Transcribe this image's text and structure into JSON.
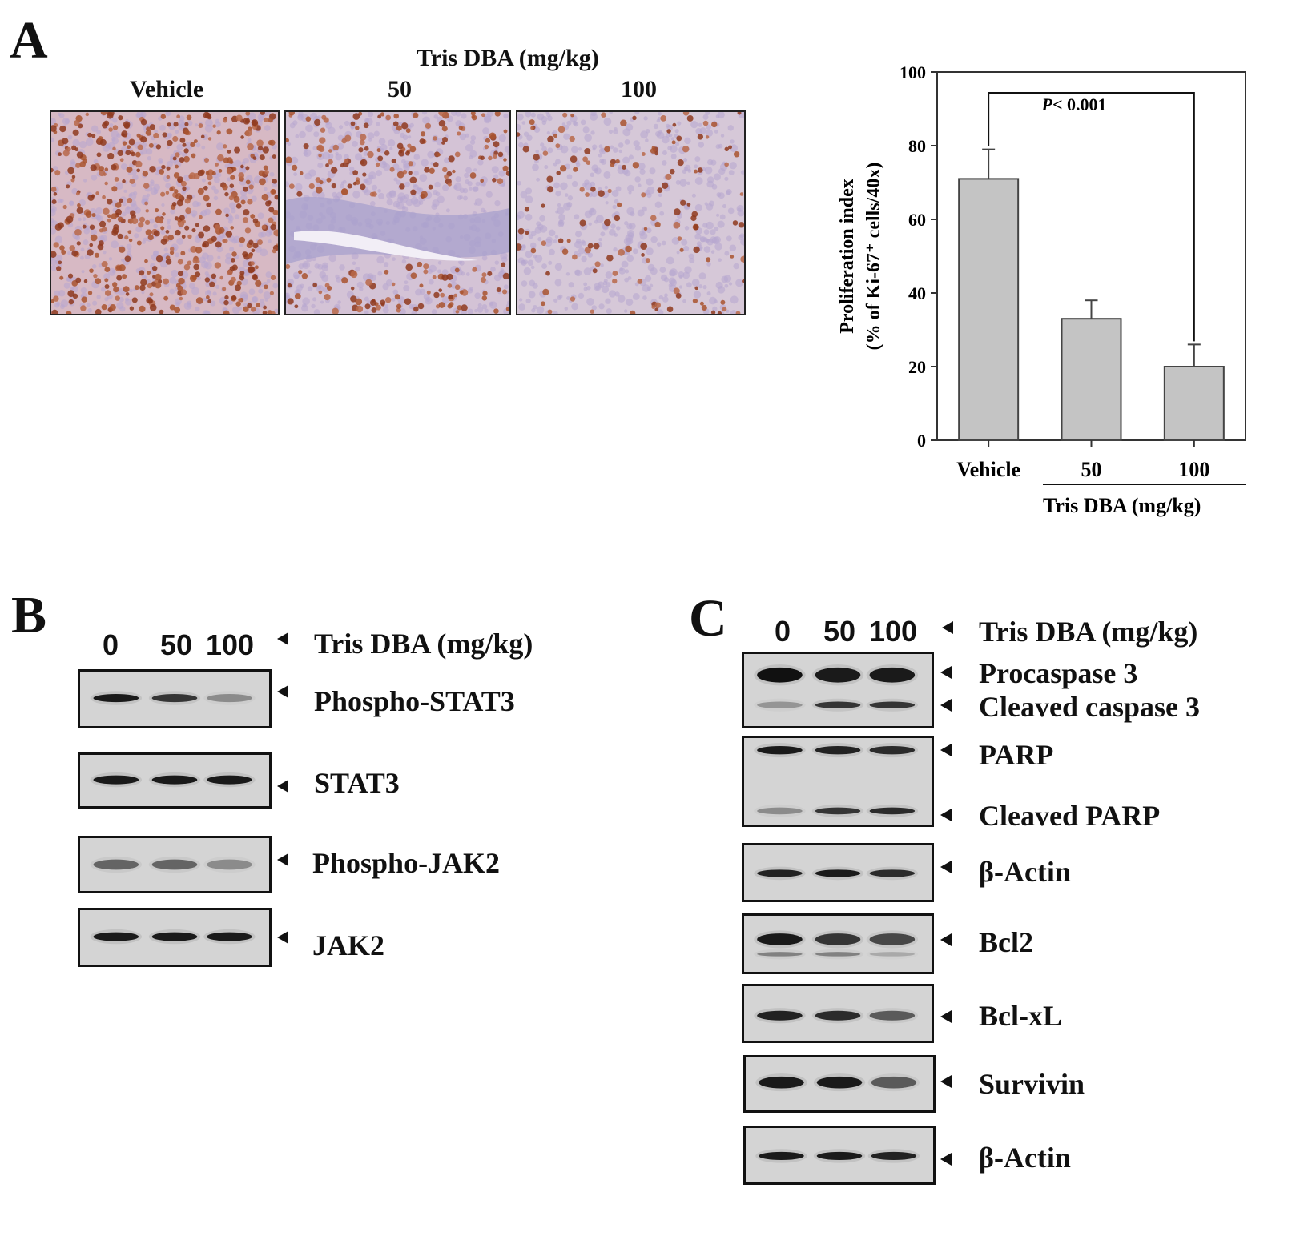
{
  "panels": {
    "a": "A",
    "b": "B",
    "c": "C"
  },
  "panel_a": {
    "header": "Tris DBA (mg/kg)",
    "columns": [
      "Vehicle",
      "50",
      "100"
    ]
  },
  "chart_data": {
    "type": "bar",
    "categories": [
      "Vehicle",
      "50",
      "100"
    ],
    "values": [
      71,
      33,
      20
    ],
    "errors": [
      8,
      5,
      6
    ],
    "ylabel_line1": "Proliferation  index",
    "ylabel_line2": "(% of Ki-67⁺ cells/40x)",
    "xlabel": "Tris DBA (mg/kg)",
    "ylim": [
      0,
      100
    ],
    "yticks": [
      "0",
      "20",
      "40",
      "60",
      "80",
      "100"
    ],
    "annotation": {
      "p": "P",
      "text": "< 0.001"
    },
    "bar_color": "#c4c4c4"
  },
  "panel_b": {
    "lanes": [
      "0",
      "50",
      "100"
    ],
    "header": "Tris DBA (mg/kg)",
    "proteins": [
      "Phospho-STAT3",
      "STAT3",
      "Phospho-JAK2",
      "JAK2"
    ]
  },
  "panel_c": {
    "lanes": [
      "0",
      "50",
      "100"
    ],
    "header": "Tris DBA (mg/kg)",
    "proteins": [
      "Procaspase 3",
      "Cleaved caspase 3",
      "PARP",
      "Cleaved PARP",
      "β-Actin",
      "Bcl2",
      "Bcl-xL",
      "Survivin",
      "β-Actin"
    ]
  }
}
